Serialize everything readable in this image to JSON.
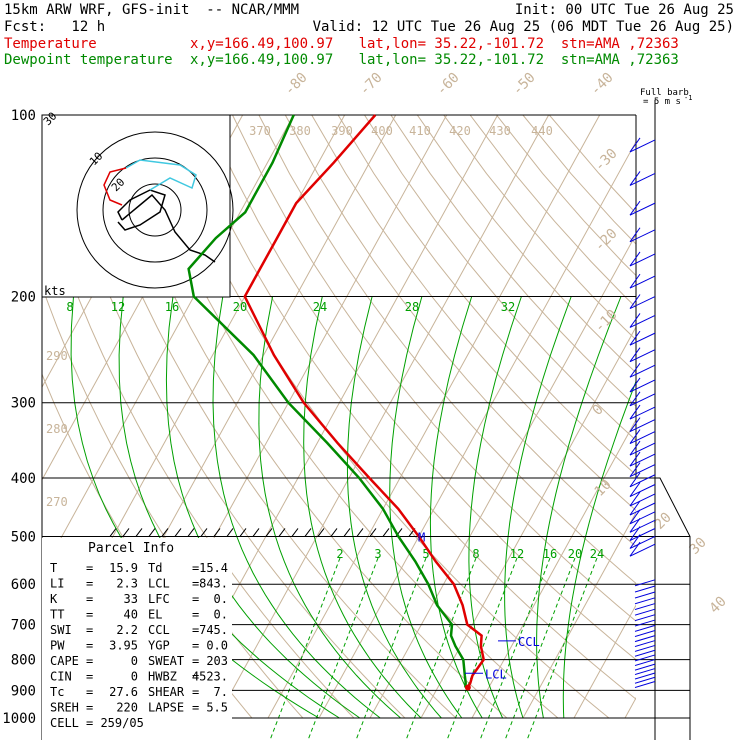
{
  "header": {
    "line1_left": "15km ARW WRF, GFS-init  -- NCAR/MMM",
    "line1_right": "Init: 00 UTC Tue 26 Aug 25",
    "line2_left": "Fcst:   12 h",
    "line2_right": "Valid: 12 UTC Tue 26 Aug 25 (06 MDT Tue 26 Aug 25)",
    "temp_label": "Temperature",
    "temp_info": "x,y=166.49,100.97   lat,lon= 35.22,-101.72  stn=AMA ,72363",
    "dew_label": "Dewpoint temperature",
    "dew_info": "x,y=166.49,100.97   lat,lon= 35.22,-101.72  stn=AMA ,72363"
  },
  "colors": {
    "temperature": "#e00000",
    "dewpoint": "#008a00",
    "isotherm": "#c8b49a",
    "mixing_ratio": "#00a000",
    "wind": "#0000dd",
    "hodo_temp": "#e00000",
    "hodo_cyan": "#40c8e0"
  },
  "chart_data": {
    "type": "line",
    "subtype": "skew-T log-p sounding",
    "pressure_levels": [
      100,
      200,
      300,
      400,
      500,
      600,
      700,
      800,
      900,
      1000
    ],
    "pressure_labels": [
      "100",
      "200",
      "300",
      "400",
      "500",
      "600",
      "700",
      "800",
      "900",
      "1000"
    ],
    "isotherm_labels": [
      "-80",
      "-70",
      "-60",
      "-50",
      "-40",
      "-30",
      "-20",
      "-10",
      "0",
      "10",
      "20",
      "30",
      "40"
    ],
    "theta_labels": [
      "370",
      "380",
      "390",
      "400",
      "410",
      "420",
      "430",
      "440"
    ],
    "theta_side_labels": [
      "290",
      "280",
      "270"
    ],
    "mixing_top_labels": [
      "8",
      "12",
      "16",
      "20",
      "24",
      "28",
      "32"
    ],
    "mixing_bottom_labels": [
      "2",
      "3",
      "5",
      "8",
      "12",
      "16",
      "20",
      "24"
    ],
    "series": [
      {
        "name": "Temperature",
        "points": [
          [
            100,
            -64
          ],
          [
            120,
            -67
          ],
          [
            140,
            -70
          ],
          [
            160,
            -70
          ],
          [
            180,
            -70
          ],
          [
            200,
            -70
          ],
          [
            250,
            -58
          ],
          [
            300,
            -47
          ],
          [
            350,
            -36
          ],
          [
            400,
            -26
          ],
          [
            450,
            -17
          ],
          [
            500,
            -10
          ],
          [
            550,
            -4
          ],
          [
            600,
            2
          ],
          [
            650,
            6
          ],
          [
            700,
            9
          ],
          [
            730,
            13
          ],
          [
            760,
            14
          ],
          [
            800,
            16
          ],
          [
            850,
            15.5
          ],
          [
            875,
            15.9
          ],
          [
            890,
            15.9
          ]
        ]
      },
      {
        "name": "Dewpoint temperature",
        "points": [
          [
            100,
            -80
          ],
          [
            120,
            -79
          ],
          [
            145,
            -79
          ],
          [
            160,
            -82
          ],
          [
            180,
            -84
          ],
          [
            200,
            -80
          ],
          [
            250,
            -62
          ],
          [
            300,
            -50
          ],
          [
            350,
            -38
          ],
          [
            400,
            -28
          ],
          [
            450,
            -20
          ],
          [
            500,
            -14
          ],
          [
            550,
            -8
          ],
          [
            600,
            -3
          ],
          [
            650,
            1
          ],
          [
            700,
            6
          ],
          [
            730,
            7
          ],
          [
            760,
            9
          ],
          [
            800,
            12
          ],
          [
            850,
            14
          ],
          [
            875,
            15
          ],
          [
            890,
            15.4
          ]
        ]
      }
    ],
    "annotations": [
      {
        "text": "CCL",
        "p": 745
      },
      {
        "text": "LCL",
        "p": 843
      },
      {
        "text": "M",
        "p": 500
      }
    ]
  },
  "hodograph": {
    "label_kts": "kts",
    "ring_labels": [
      "10",
      "20",
      "30"
    ]
  },
  "wind_barbs": {
    "title": "Full barb",
    "units": "= 5 m s",
    "exp": "-1"
  },
  "parcel_info": {
    "title": "Parcel Info",
    "rows": [
      {
        "l1": "T",
        "v1": "15.9",
        "l2": "Td",
        "v2": "15.4"
      },
      {
        "l1": "LI",
        "v1": "2.3",
        "l2": "LCL",
        "v2": "843."
      },
      {
        "l1": "K",
        "v1": "33",
        "l2": "LFC",
        "v2": "0."
      },
      {
        "l1": "TT",
        "v1": "40",
        "l2": "EL",
        "v2": "0."
      },
      {
        "l1": "SWI",
        "v1": "2.2",
        "l2": "CCL",
        "v2": "745."
      },
      {
        "l1": "PW",
        "v1": "3.95",
        "l2": "YGP",
        "v2": "0.0"
      },
      {
        "l1": "CAPE",
        "v1": "0",
        "l2": "SWEAT",
        "v2": "203"
      },
      {
        "l1": "CIN",
        "v1": "0",
        "l2": "HWBZ",
        "v2": "4523."
      },
      {
        "l1": "Tc",
        "v1": "27.6",
        "l2": "SHEAR",
        "v2": "7."
      },
      {
        "l1": "SREH",
        "v1": "220",
        "l2": "LAPSE",
        "v2": "5.5"
      },
      {
        "l1": "CELL",
        "v1": "259/05",
        "l2": "",
        "v2": ""
      }
    ]
  }
}
